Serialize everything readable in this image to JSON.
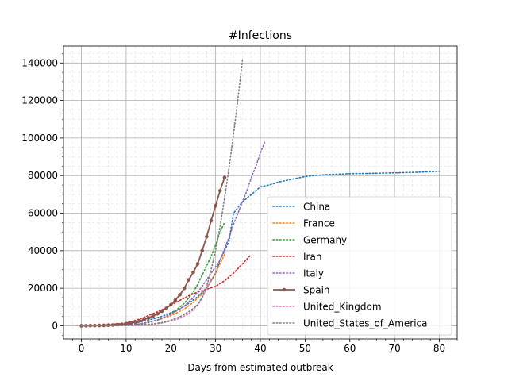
{
  "chart_data": {
    "type": "line",
    "title": "#Infections",
    "xlabel": "Days from estimated outbreak",
    "ylabel": "",
    "xlim": [
      -4,
      84
    ],
    "ylim": [
      -7000,
      149000
    ],
    "xticks": [
      0,
      10,
      20,
      30,
      40,
      50,
      60,
      70,
      80
    ],
    "yticks": [
      0,
      20000,
      40000,
      60000,
      80000,
      100000,
      120000,
      140000
    ],
    "grid": true,
    "minor_grid": true,
    "legend_position": "center-right",
    "series": [
      {
        "name": "China",
        "color": "#1f77b4",
        "style": "dotted",
        "x": [
          0,
          2,
          4,
          6,
          8,
          10,
          12,
          14,
          16,
          18,
          20,
          22,
          24,
          26,
          28,
          30,
          31,
          32,
          33,
          34,
          36,
          38,
          40,
          42,
          44,
          46,
          48,
          50,
          52,
          55,
          60,
          65,
          70,
          75,
          80
        ],
        "y": [
          0,
          50,
          150,
          300,
          550,
          900,
          1500,
          2500,
          3700,
          5000,
          7000,
          9000,
          12000,
          15500,
          20000,
          28000,
          35000,
          40000,
          45000,
          60000,
          66000,
          70000,
          74000,
          75000,
          76500,
          77500,
          78500,
          79500,
          80000,
          80500,
          81000,
          81200,
          81500,
          81800,
          82300
        ]
      },
      {
        "name": "France",
        "color": "#ff7f0e",
        "style": "dotted",
        "x": [
          0,
          5,
          10,
          13,
          15,
          17,
          19,
          21,
          23,
          25,
          27,
          28,
          29,
          30,
          31,
          32
        ],
        "y": [
          0,
          80,
          300,
          900,
          1800,
          3000,
          4500,
          6500,
          9000,
          12500,
          17000,
          20000,
          24000,
          28000,
          33000,
          38000
        ]
      },
      {
        "name": "Germany",
        "color": "#2ca02c",
        "style": "dotted",
        "x": [
          0,
          5,
          10,
          13,
          15,
          17,
          19,
          21,
          23,
          25,
          26,
          27,
          28,
          29,
          30,
          31,
          32
        ],
        "y": [
          0,
          80,
          300,
          900,
          1800,
          3000,
          5000,
          8000,
          12000,
          18000,
          22000,
          27000,
          32000,
          37000,
          43000,
          50000,
          55000
        ]
      },
      {
        "name": "Iran",
        "color": "#d62728",
        "style": "dotted",
        "x": [
          0,
          5,
          10,
          12,
          14,
          16,
          18,
          20,
          22,
          24,
          26,
          28,
          30,
          32,
          34,
          36,
          38
        ],
        "y": [
          0,
          300,
          1500,
          2800,
          4500,
          6500,
          8500,
          11000,
          13500,
          16000,
          18000,
          19500,
          21000,
          24000,
          28000,
          33000,
          38000
        ]
      },
      {
        "name": "Italy",
        "color": "#9467bd",
        "style": "dotted",
        "x": [
          0,
          5,
          10,
          13,
          15,
          17,
          19,
          21,
          23,
          25,
          27,
          29,
          31,
          32,
          33,
          34,
          35,
          36,
          37,
          38,
          39,
          40,
          41
        ],
        "y": [
          0,
          100,
          400,
          1000,
          2000,
          3200,
          5000,
          7500,
          10500,
          15000,
          21000,
          28000,
          35000,
          41000,
          47000,
          54000,
          60000,
          66000,
          72000,
          79000,
          85000,
          92000,
          98000
        ]
      },
      {
        "name": "Spain",
        "color": "#8c564b",
        "style": "solid",
        "marker": "circle",
        "x": [
          0,
          1,
          2,
          3,
          4,
          5,
          6,
          7,
          8,
          9,
          10,
          11,
          12,
          13,
          14,
          15,
          16,
          17,
          18,
          19,
          20,
          21,
          22,
          23,
          24,
          25,
          26,
          27,
          28,
          29,
          30,
          31,
          32
        ],
        "y": [
          0,
          30,
          60,
          100,
          150,
          200,
          300,
          400,
          600,
          800,
          1100,
          1500,
          2000,
          2600,
          3300,
          4200,
          5200,
          6400,
          7800,
          9300,
          11200,
          13700,
          16500,
          20000,
          24500,
          28500,
          33000,
          40000,
          47500,
          56000,
          64000,
          72000,
          79000
        ]
      },
      {
        "name": "United_Kingdom",
        "color": "#e377c2",
        "style": "dotted",
        "x": [
          0,
          5,
          10,
          12,
          14,
          16,
          18,
          20,
          22,
          24,
          25,
          26,
          27,
          28,
          29
        ],
        "y": [
          0,
          30,
          100,
          200,
          400,
          800,
          1500,
          2500,
          4000,
          6500,
          8500,
          11500,
          15000,
          19500,
          25000
        ]
      },
      {
        "name": "United_States_of_America",
        "color": "#7f7f7f",
        "style": "dotted",
        "x": [
          0,
          5,
          10,
          14,
          16,
          18,
          20,
          22,
          24,
          26,
          27,
          28,
          29,
          30,
          31,
          32,
          33,
          34,
          35,
          36
        ],
        "y": [
          0,
          50,
          200,
          600,
          1000,
          1700,
          2900,
          4800,
          7500,
          11000,
          15000,
          21000,
          30000,
          40000,
          53000,
          68000,
          84000,
          102000,
          121000,
          142000
        ]
      }
    ]
  }
}
